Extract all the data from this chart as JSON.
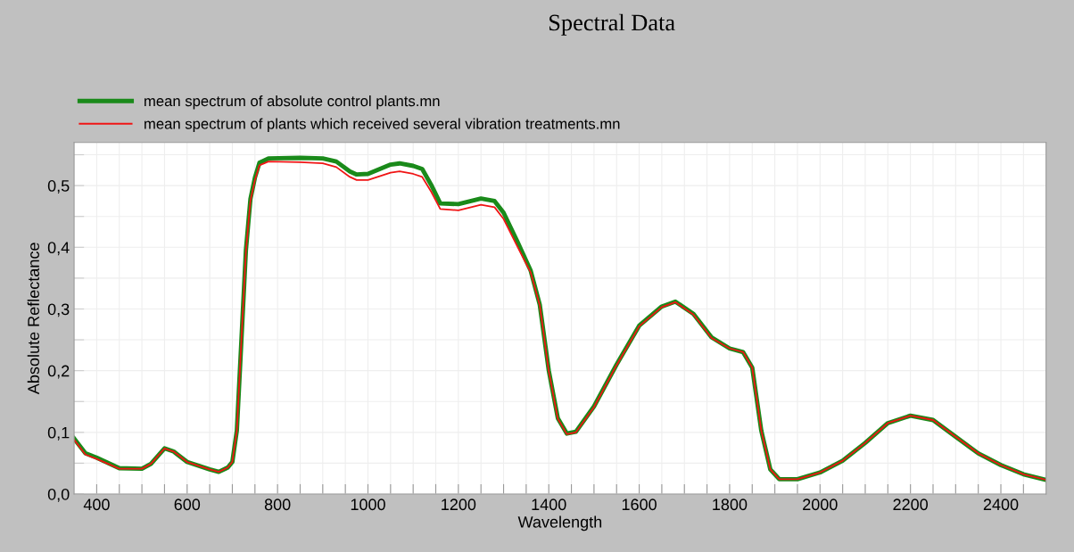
{
  "chart_data": {
    "type": "line",
    "title": "Spectral Data",
    "xlabel": "Wavelength",
    "ylabel": "Absolute Reflectance",
    "xlim": [
      350,
      2500
    ],
    "ylim": [
      0,
      0.57
    ],
    "xticks": [
      400,
      {
        "value": 450,
        "label": null
      },
      {
        "value": 500,
        "label": null
      },
      {
        "value": 550,
        "label": null
      },
      600,
      {
        "value": 650,
        "label": null
      },
      {
        "value": 700,
        "label": null
      },
      {
        "value": 750,
        "label": null
      },
      800,
      {
        "value": 850,
        "label": null
      },
      {
        "value": 900,
        "label": null
      },
      {
        "value": 950,
        "label": null
      },
      1000,
      {
        "value": 1050,
        "label": null
      },
      {
        "value": 1100,
        "label": null
      },
      {
        "value": 1150,
        "label": null
      },
      1200,
      {
        "value": 1250,
        "label": null
      },
      {
        "value": 1300,
        "label": null
      },
      {
        "value": 1350,
        "label": null
      },
      1400,
      {
        "value": 1450,
        "label": null
      },
      {
        "value": 1500,
        "label": null
      },
      {
        "value": 1550,
        "label": null
      },
      1600,
      {
        "value": 1650,
        "label": null
      },
      {
        "value": 1700,
        "label": null
      },
      {
        "value": 1750,
        "label": null
      },
      1800,
      {
        "value": 1850,
        "label": null
      },
      {
        "value": 1900,
        "label": null
      },
      {
        "value": 1950,
        "label": null
      },
      2000,
      {
        "value": 2050,
        "label": null
      },
      {
        "value": 2100,
        "label": null
      },
      {
        "value": 2150,
        "label": null
      },
      2200,
      {
        "value": 2250,
        "label": null
      },
      {
        "value": 2300,
        "label": null
      },
      {
        "value": 2350,
        "label": null
      },
      2400,
      {
        "value": 2450,
        "label": null
      }
    ],
    "yticks": [
      {
        "value": 0,
        "label": "0,0"
      },
      {
        "value": 0.05,
        "label": null
      },
      {
        "value": 0.1,
        "label": "0,1"
      },
      {
        "value": 0.15,
        "label": null
      },
      {
        "value": 0.2,
        "label": "0,2"
      },
      {
        "value": 0.25,
        "label": null
      },
      {
        "value": 0.3,
        "label": "0,3"
      },
      {
        "value": 0.35,
        "label": null
      },
      {
        "value": 0.4,
        "label": "0,4"
      },
      {
        "value": 0.45,
        "label": null
      },
      {
        "value": 0.5,
        "label": "0,5"
      },
      {
        "value": 0.55,
        "label": null
      }
    ],
    "grid": true,
    "legend": "top left",
    "marker": "none",
    "line_style": "solid",
    "x": [
      350,
      375,
      400,
      450,
      500,
      520,
      550,
      570,
      600,
      650,
      670,
      690,
      700,
      710,
      720,
      730,
      740,
      750,
      760,
      780,
      850,
      900,
      930,
      960,
      975,
      1000,
      1050,
      1070,
      1100,
      1120,
      1140,
      1160,
      1200,
      1250,
      1280,
      1300,
      1330,
      1360,
      1380,
      1400,
      1420,
      1440,
      1460,
      1500,
      1550,
      1600,
      1650,
      1680,
      1720,
      1760,
      1800,
      1830,
      1850,
      1870,
      1890,
      1910,
      1950,
      2000,
      2050,
      2100,
      2150,
      2200,
      2250,
      2300,
      2350,
      2400,
      2450,
      2500
    ],
    "series": [
      {
        "name": "mean spectrum of absolute control plants.mn",
        "color": "#1a8a1a",
        "values": [
          0.09,
          0.066,
          0.059,
          0.042,
          0.041,
          0.049,
          0.074,
          0.069,
          0.052,
          0.04,
          0.036,
          0.043,
          0.052,
          0.103,
          0.248,
          0.395,
          0.478,
          0.513,
          0.537,
          0.544,
          0.545,
          0.544,
          0.539,
          0.523,
          0.518,
          0.519,
          0.534,
          0.536,
          0.532,
          0.527,
          0.501,
          0.471,
          0.47,
          0.479,
          0.475,
          0.456,
          0.41,
          0.362,
          0.307,
          0.2,
          0.123,
          0.098,
          0.101,
          0.142,
          0.21,
          0.273,
          0.304,
          0.312,
          0.292,
          0.254,
          0.236,
          0.23,
          0.205,
          0.103,
          0.04,
          0.024,
          0.024,
          0.035,
          0.054,
          0.083,
          0.115,
          0.127,
          0.12,
          0.093,
          0.066,
          0.047,
          0.032,
          0.023
        ]
      },
      {
        "name": "mean spectrum of plants which received several vibration treatments.mn",
        "color": "#f01414",
        "values": [
          0.088,
          0.064,
          0.057,
          0.041,
          0.041,
          0.049,
          0.074,
          0.069,
          0.052,
          0.04,
          0.036,
          0.043,
          0.052,
          0.103,
          0.248,
          0.393,
          0.475,
          0.509,
          0.533,
          0.539,
          0.538,
          0.536,
          0.53,
          0.514,
          0.509,
          0.509,
          0.521,
          0.523,
          0.519,
          0.514,
          0.49,
          0.462,
          0.46,
          0.469,
          0.465,
          0.446,
          0.402,
          0.359,
          0.306,
          0.199,
          0.122,
          0.097,
          0.1,
          0.141,
          0.209,
          0.272,
          0.303,
          0.311,
          0.291,
          0.253,
          0.236,
          0.23,
          0.205,
          0.103,
          0.04,
          0.024,
          0.024,
          0.035,
          0.054,
          0.083,
          0.115,
          0.127,
          0.12,
          0.093,
          0.066,
          0.047,
          0.032,
          0.023
        ]
      }
    ]
  }
}
